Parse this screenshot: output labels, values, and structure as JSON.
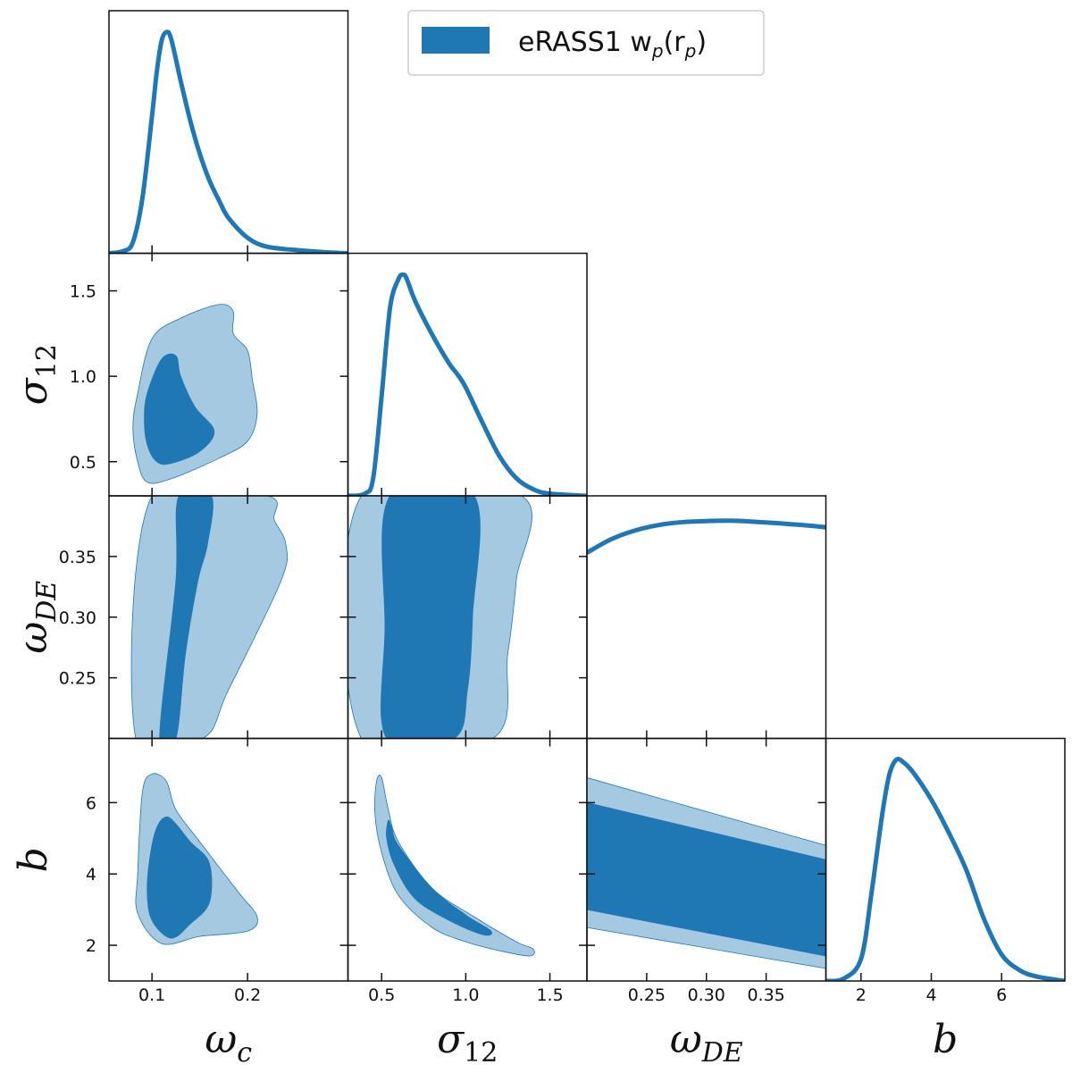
{
  "chart_data": {
    "type": "corner",
    "colors": {
      "dark": "#1f77b4",
      "light": "#a6c9e2",
      "line": "#1f77b4"
    },
    "legend": {
      "label": "eRASS1 w",
      "sub1": "p",
      "mid": "(r",
      "sub2": "p",
      "end": ")",
      "location": "top-right"
    },
    "params": [
      {
        "key": "omega_c",
        "label": "ω",
        "sub": "c",
        "range": [
          0.055,
          0.305
        ],
        "ticks": [
          0.1,
          0.2
        ],
        "tick_labels": [
          "0.1",
          "0.2"
        ]
      },
      {
        "key": "sigma_12",
        "label": "σ",
        "sub": "12",
        "range": [
          0.3,
          1.72
        ],
        "ticks": [
          0.5,
          1.0,
          1.5
        ],
        "tick_labels": [
          "0.5",
          "1.0",
          "1.5"
        ]
      },
      {
        "key": "omega_DE",
        "label": "ω",
        "sub": "DE",
        "range": [
          0.2,
          0.4
        ],
        "ticks": [
          0.25,
          0.3,
          0.35
        ],
        "tick_labels": [
          "0.25",
          "0.30",
          "0.35"
        ]
      },
      {
        "key": "b",
        "label": "b",
        "sub": "",
        "range": [
          1.0,
          7.8
        ],
        "ticks": [
          2,
          4,
          6
        ],
        "tick_labels": [
          "2",
          "4",
          "6"
        ]
      }
    ],
    "marginals": [
      {
        "param": 0,
        "x": [
          0.055,
          0.07,
          0.08,
          0.09,
          0.1,
          0.105,
          0.11,
          0.115,
          0.12,
          0.13,
          0.14,
          0.15,
          0.16,
          0.17,
          0.18,
          0.2,
          0.22,
          0.25,
          0.28,
          0.305
        ],
        "y": [
          0.0,
          0.01,
          0.05,
          0.25,
          0.62,
          0.82,
          0.96,
          1.0,
          0.97,
          0.78,
          0.6,
          0.45,
          0.33,
          0.24,
          0.16,
          0.07,
          0.03,
          0.015,
          0.005,
          0.0
        ]
      },
      {
        "param": 1,
        "x": [
          0.3,
          0.4,
          0.45,
          0.5,
          0.55,
          0.6,
          0.63,
          0.65,
          0.7,
          0.8,
          0.9,
          0.95,
          1.0,
          1.1,
          1.2,
          1.3,
          1.4,
          1.5,
          1.72
        ],
        "y": [
          0.0,
          0.01,
          0.08,
          0.45,
          0.85,
          0.98,
          1.0,
          0.98,
          0.88,
          0.73,
          0.6,
          0.55,
          0.49,
          0.33,
          0.18,
          0.08,
          0.03,
          0.01,
          0.0
        ]
      },
      {
        "param": 2,
        "x": [
          0.2,
          0.22,
          0.24,
          0.26,
          0.28,
          0.3,
          0.32,
          0.34,
          0.36,
          0.38,
          0.4
        ],
        "y": [
          0.84,
          0.9,
          0.94,
          0.965,
          0.978,
          0.983,
          0.985,
          0.98,
          0.973,
          0.965,
          0.955
        ]
      },
      {
        "param": 3,
        "x": [
          1.0,
          1.5,
          2.0,
          2.3,
          2.6,
          2.8,
          3.0,
          3.2,
          3.5,
          4.0,
          4.5,
          5.0,
          5.5,
          6.0,
          6.5,
          7.0,
          7.8
        ],
        "y": [
          0.0,
          0.01,
          0.1,
          0.4,
          0.75,
          0.93,
          1.0,
          0.99,
          0.94,
          0.82,
          0.67,
          0.5,
          0.28,
          0.12,
          0.05,
          0.02,
          0.0
        ]
      }
    ],
    "contours": [
      {
        "x_param": 0,
        "y_param": 1,
        "outer": [
          [
            0.085,
            0.9
          ],
          [
            0.1,
            1.22
          ],
          [
            0.13,
            1.34
          ],
          [
            0.17,
            1.42
          ],
          [
            0.185,
            1.38
          ],
          [
            0.185,
            1.25
          ],
          [
            0.2,
            1.15
          ],
          [
            0.205,
            0.98
          ],
          [
            0.21,
            0.78
          ],
          [
            0.2,
            0.62
          ],
          [
            0.17,
            0.52
          ],
          [
            0.12,
            0.4
          ],
          [
            0.095,
            0.38
          ],
          [
            0.085,
            0.5
          ],
          [
            0.08,
            0.7
          ]
        ],
        "inner": [
          [
            0.095,
            0.9
          ],
          [
            0.11,
            1.1
          ],
          [
            0.125,
            1.12
          ],
          [
            0.13,
            1.0
          ],
          [
            0.145,
            0.82
          ],
          [
            0.165,
            0.68
          ],
          [
            0.15,
            0.56
          ],
          [
            0.12,
            0.49
          ],
          [
            0.105,
            0.5
          ],
          [
            0.095,
            0.6
          ],
          [
            0.092,
            0.75
          ]
        ]
      },
      {
        "x_param": 0,
        "y_param": 2,
        "outer": [
          [
            0.083,
            0.2
          ],
          [
            0.1,
            0.4
          ],
          [
            0.22,
            0.4
          ],
          [
            0.228,
            0.38
          ],
          [
            0.24,
            0.36
          ],
          [
            0.235,
            0.33
          ],
          [
            0.18,
            0.24
          ],
          [
            0.153,
            0.2
          ]
        ],
        "inner": [
          [
            0.108,
            0.2
          ],
          [
            0.125,
            0.33
          ],
          [
            0.128,
            0.4
          ],
          [
            0.162,
            0.4
          ],
          [
            0.158,
            0.36
          ],
          [
            0.148,
            0.33
          ],
          [
            0.135,
            0.27
          ],
          [
            0.125,
            0.2
          ]
        ]
      },
      {
        "x_param": 1,
        "y_param": 2,
        "outer": [
          [
            0.38,
            0.2
          ],
          [
            0.38,
            0.4
          ],
          [
            1.33,
            0.4
          ],
          [
            1.3,
            0.33
          ],
          [
            1.25,
            0.27
          ],
          [
            1.16,
            0.2
          ]
        ],
        "inner": [
          [
            0.53,
            0.2
          ],
          [
            0.52,
            0.29
          ],
          [
            0.55,
            0.4
          ],
          [
            1.05,
            0.4
          ],
          [
            1.04,
            0.3
          ],
          [
            1.01,
            0.24
          ],
          [
            0.93,
            0.2
          ]
        ]
      },
      {
        "x_param": 0,
        "y_param": 3,
        "outer": [
          [
            0.085,
            4.0
          ],
          [
            0.09,
            6.3
          ],
          [
            0.1,
            6.8
          ],
          [
            0.115,
            6.6
          ],
          [
            0.125,
            5.8
          ],
          [
            0.15,
            4.9
          ],
          [
            0.19,
            3.5
          ],
          [
            0.21,
            2.8
          ],
          [
            0.2,
            2.4
          ],
          [
            0.15,
            2.25
          ],
          [
            0.11,
            2.05
          ],
          [
            0.085,
            2.9
          ]
        ],
        "inner": [
          [
            0.098,
            4.5
          ],
          [
            0.105,
            5.3
          ],
          [
            0.115,
            5.6
          ],
          [
            0.125,
            5.4
          ],
          [
            0.14,
            4.9
          ],
          [
            0.16,
            4.3
          ],
          [
            0.16,
            3.2
          ],
          [
            0.14,
            2.6
          ],
          [
            0.12,
            2.2
          ],
          [
            0.1,
            2.7
          ],
          [
            0.095,
            3.5
          ]
        ]
      },
      {
        "x_param": 1,
        "y_param": 3,
        "outer": [
          [
            0.47,
            6.6
          ],
          [
            0.5,
            6.7
          ],
          [
            0.54,
            5.8
          ],
          [
            0.6,
            4.9
          ],
          [
            0.8,
            3.6
          ],
          [
            1.05,
            2.8
          ],
          [
            1.3,
            2.1
          ],
          [
            1.4,
            1.9
          ],
          [
            1.38,
            1.7
          ],
          [
            1.2,
            1.85
          ],
          [
            1.0,
            2.1
          ],
          [
            0.8,
            2.5
          ],
          [
            0.6,
            3.4
          ],
          [
            0.5,
            4.6
          ],
          [
            0.46,
            5.7
          ]
        ],
        "inner": [
          [
            0.54,
            5.5
          ],
          [
            0.56,
            5.3
          ],
          [
            0.6,
            4.8
          ],
          [
            0.8,
            3.6
          ],
          [
            1.0,
            2.85
          ],
          [
            1.15,
            2.4
          ],
          [
            1.1,
            2.3
          ],
          [
            0.9,
            2.7
          ],
          [
            0.7,
            3.3
          ],
          [
            0.58,
            4.2
          ],
          [
            0.53,
            5.0
          ]
        ]
      },
      {
        "x_param": 2,
        "y_param": 3,
        "outer": [
          [
            0.2,
            6.7
          ],
          [
            0.4,
            4.8
          ],
          [
            0.4,
            1.35
          ],
          [
            0.2,
            2.5
          ]
        ],
        "inner": [
          [
            0.2,
            6.0
          ],
          [
            0.4,
            4.4
          ],
          [
            0.4,
            1.7
          ],
          [
            0.2,
            3.0
          ]
        ]
      }
    ]
  }
}
